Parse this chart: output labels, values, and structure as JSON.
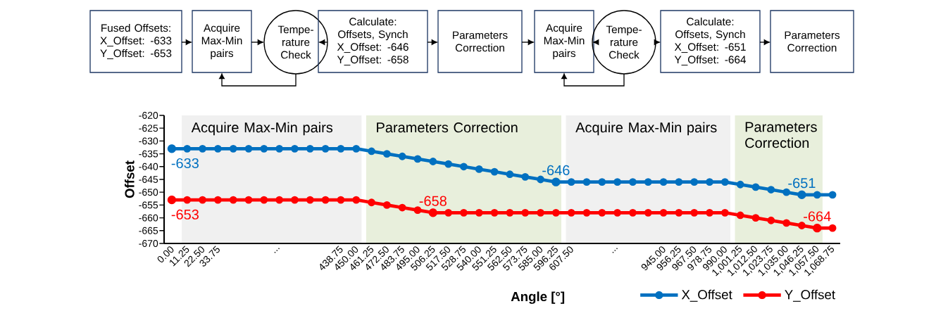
{
  "chart_data": [
    {
      "type": "other",
      "annotations": [
        "Fused Offsets: X_Offset: -633 Y_Offset: -653",
        "Acquire Max-Min pairs",
        "Tempe-rature Check",
        "Calculate: Offsets, Synch X_Offset: -646 Y_Offset: -658",
        "Parameters Correction",
        "Acquire Max-Min pairs",
        "Tempe-rature Check",
        "Calculate: Offsets, Synch X_Offset: -651 Y_Offset: -664",
        "Parameters Correction"
      ]
    },
    {
      "type": "line",
      "xlabel": "Angle [°]",
      "ylabel": "Offset",
      "marker": "circle",
      "legend": "bottom right",
      "categories": [
        "0.00",
        "11.25",
        "22.50",
        "33.75",
        null,
        null,
        null,
        "...",
        null,
        null,
        null,
        "438.75",
        "450.00",
        "461.25",
        "472.50",
        "483.75",
        "495.00",
        "506.25",
        "517.50",
        "528.75",
        "540.00",
        "551.25",
        "562.50",
        "573.75",
        "585.00",
        "596.25",
        "607.50",
        null,
        null,
        "...",
        null,
        null,
        "945.00",
        "956.25",
        "967.50",
        "978.75",
        "990.00",
        "1,001.25",
        "1,012.50",
        "1,023.75",
        "1,035.00",
        "1,046.25",
        "1,057.50",
        "1,068.75"
      ],
      "ylim": [
        -670,
        -620
      ],
      "yticks": [
        -670,
        -665,
        -660,
        -655,
        -650,
        -645,
        -640,
        -635,
        -630,
        -625,
        -620
      ],
      "series": [
        {
          "name": "X_Offset",
          "color": "#0070c0",
          "values": [
            -633,
            -633,
            -633,
            -633,
            -633,
            -633,
            -633,
            -633,
            -633,
            -633,
            -633,
            -633,
            -633,
            -634,
            -635,
            -636,
            -637,
            -638,
            -639,
            -640,
            -641,
            -642,
            -643,
            -644,
            -645,
            -646,
            -646,
            -646,
            -646,
            -646,
            -646,
            -646,
            -646,
            -646,
            -646,
            -646,
            -646,
            -647,
            -648,
            -649,
            -650,
            -651,
            -651,
            -651
          ],
          "value_labels": [
            "-633",
            null,
            null,
            null,
            null,
            null,
            null,
            null,
            null,
            null,
            null,
            null,
            null,
            null,
            null,
            null,
            null,
            null,
            null,
            null,
            null,
            null,
            null,
            null,
            null,
            "-646",
            null,
            null,
            null,
            null,
            null,
            null,
            null,
            null,
            null,
            null,
            null,
            null,
            null,
            null,
            null,
            "-651",
            null,
            null
          ]
        },
        {
          "name": "Y_Offset",
          "color": "#ff0000",
          "values": [
            -653,
            -653,
            -653,
            -653,
            -653,
            -653,
            -653,
            -653,
            -653,
            -653,
            -653,
            -653,
            -653,
            -654,
            -655,
            -656,
            -657,
            -658,
            -658,
            -658,
            -658,
            -658,
            -658,
            -658,
            -658,
            -658,
            -658,
            -658,
            -658,
            -658,
            -658,
            -658,
            -658,
            -658,
            -658,
            -658,
            -658,
            -659,
            -660,
            -661,
            -662,
            -663,
            -664,
            -664
          ],
          "value_labels": [
            "-653",
            null,
            null,
            null,
            null,
            null,
            null,
            null,
            null,
            null,
            null,
            null,
            null,
            null,
            null,
            null,
            null,
            "-658",
            null,
            null,
            null,
            null,
            null,
            null,
            null,
            null,
            null,
            null,
            null,
            null,
            null,
            null,
            null,
            null,
            null,
            null,
            null,
            null,
            null,
            null,
            null,
            null,
            "-664",
            null
          ]
        }
      ],
      "bands": [
        {
          "axis": "x",
          "from": "11.25",
          "to": "450.00",
          "label": "Acquire Max-Min pairs",
          "color": "#f0f0f0"
        },
        {
          "axis": "x",
          "from": "461.25",
          "to": "596.25",
          "label": "Parameters Correction",
          "color": "#e8efdc"
        },
        {
          "axis": "x",
          "from": "607.50",
          "to": "990.00",
          "label": "Acquire Max-Min pairs",
          "color": "#f0f0f0"
        },
        {
          "axis": "x",
          "from": "1,001.25",
          "to": "1,057.50",
          "label": "Parameters Correction",
          "color": "#e8efdc"
        }
      ]
    }
  ]
}
